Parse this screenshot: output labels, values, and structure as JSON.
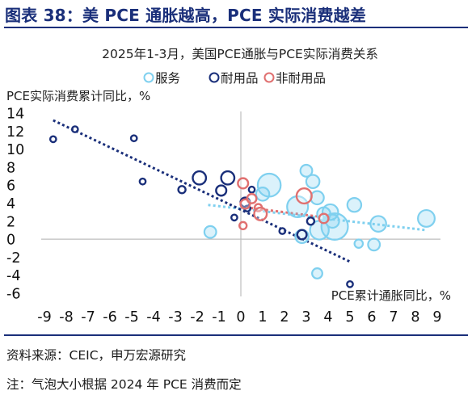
{
  "figure_title": "图表 38：美 PCE 通胀越高，PCE 实际消费越差",
  "source": "资料来源：CEIC，申万宏源研究",
  "note": "注：气泡大小根据 2024 年 PCE 消费而定",
  "colors": {
    "services": "#7fd0ef",
    "durables": "#1a2f7a",
    "nondurables": "#e07070",
    "title": "#1a2f7a"
  },
  "chart_data": {
    "type": "scatter",
    "subtitle": "2025年1-3月，美国PCE通胀与PCE实际消费关系",
    "xlabel": "PCE累计通胀同比，%",
    "ylabel": "PCE实际消费累计同比，%",
    "xlim": [
      -9,
      9
    ],
    "ylim": [
      -6,
      14
    ],
    "x_ticks": [
      -9,
      -8,
      -7,
      -6,
      -5,
      -4,
      -3,
      -2,
      -1,
      0,
      1,
      2,
      3,
      4,
      5,
      6,
      7,
      8,
      9
    ],
    "y_ticks": [
      -6,
      -4,
      -2,
      0,
      2,
      4,
      6,
      8,
      10,
      12,
      14
    ],
    "legend_position": "top-right",
    "grid": false,
    "series": [
      {
        "name": "服务",
        "color": "#7fd0ef",
        "style": "filled-bubble",
        "points": [
          {
            "x": 1.3,
            "y": 6.0,
            "size": 3
          },
          {
            "x": 1.0,
            "y": 5.0,
            "size": 1
          },
          {
            "x": 2.6,
            "y": 3.6,
            "size": 2.5
          },
          {
            "x": 3.0,
            "y": 7.6,
            "size": 0.8
          },
          {
            "x": 3.3,
            "y": 6.4,
            "size": 1
          },
          {
            "x": 3.5,
            "y": 4.6,
            "size": 1
          },
          {
            "x": 3.8,
            "y": 2.8,
            "size": 1
          },
          {
            "x": 4.1,
            "y": 3.0,
            "size": 1.4
          },
          {
            "x": 4.2,
            "y": 2.0,
            "size": 1
          },
          {
            "x": 3.6,
            "y": 1.0,
            "size": 2
          },
          {
            "x": 4.3,
            "y": 1.4,
            "size": 4
          },
          {
            "x": 5.2,
            "y": 3.8,
            "size": 1.1
          },
          {
            "x": 6.3,
            "y": 1.7,
            "size": 1.4
          },
          {
            "x": 5.4,
            "y": -0.5,
            "size": 0.4
          },
          {
            "x": 6.1,
            "y": -0.6,
            "size": 0.8
          },
          {
            "x": 8.5,
            "y": 2.3,
            "size": 1.6
          },
          {
            "x": 3.5,
            "y": -3.8,
            "size": 0.6
          },
          {
            "x": -1.4,
            "y": 0.8,
            "size": 0.8
          },
          {
            "x": 2.8,
            "y": 0.3,
            "size": 1
          }
        ]
      },
      {
        "name": "耐用品",
        "color": "#1a2f7a",
        "style": "open-bubble",
        "points": [
          {
            "x": -8.6,
            "y": 11.1,
            "size": 0.2
          },
          {
            "x": -7.6,
            "y": 12.2,
            "size": 0.2
          },
          {
            "x": -4.9,
            "y": 11.2,
            "size": 0.2
          },
          {
            "x": -4.5,
            "y": 6.4,
            "size": 0.2
          },
          {
            "x": -2.7,
            "y": 5.5,
            "size": 0.3
          },
          {
            "x": -1.9,
            "y": 6.8,
            "size": 1
          },
          {
            "x": -0.6,
            "y": 6.8,
            "size": 1
          },
          {
            "x": -0.9,
            "y": 5.4,
            "size": 0.6
          },
          {
            "x": -0.3,
            "y": 2.4,
            "size": 0.2
          },
          {
            "x": 0.2,
            "y": 4.1,
            "size": 0.5
          },
          {
            "x": 0.3,
            "y": 3.4,
            "size": 0.2
          },
          {
            "x": 0.5,
            "y": 5.5,
            "size": 0.2
          },
          {
            "x": 1.9,
            "y": 0.9,
            "size": 0.2
          },
          {
            "x": 2.8,
            "y": 0.5,
            "size": 0.5
          },
          {
            "x": 3.2,
            "y": 2.0,
            "size": 0.3
          },
          {
            "x": 5.0,
            "y": -5.0,
            "size": 0.2
          }
        ]
      },
      {
        "name": "非耐用品",
        "color": "#e07070",
        "style": "open-bubble",
        "points": [
          {
            "x": 0.1,
            "y": 6.2,
            "size": 0.6
          },
          {
            "x": 0.2,
            "y": 3.9,
            "size": 0.5
          },
          {
            "x": 0.5,
            "y": 4.5,
            "size": 0.5
          },
          {
            "x": 0.8,
            "y": 3.5,
            "size": 0.3
          },
          {
            "x": 0.9,
            "y": 2.8,
            "size": 0.9
          },
          {
            "x": 0.1,
            "y": 1.5,
            "size": 0.3
          },
          {
            "x": 2.9,
            "y": 4.8,
            "size": 1.3
          },
          {
            "x": 3.8,
            "y": 2.3,
            "size": 0.5
          }
        ]
      }
    ],
    "trendlines": [
      {
        "series": "服务",
        "from": {
          "x": -1.5,
          "y": 3.8
        },
        "to": {
          "x": 8.5,
          "y": 1.0
        }
      },
      {
        "series": "耐用品",
        "from": {
          "x": -8.6,
          "y": 13.2
        },
        "to": {
          "x": 5.0,
          "y": -2.5
        }
      },
      {
        "series": "非耐用品",
        "from": {
          "x": 0.0,
          "y": 3.6
        },
        "to": {
          "x": 3.6,
          "y": 2.5
        }
      }
    ]
  }
}
